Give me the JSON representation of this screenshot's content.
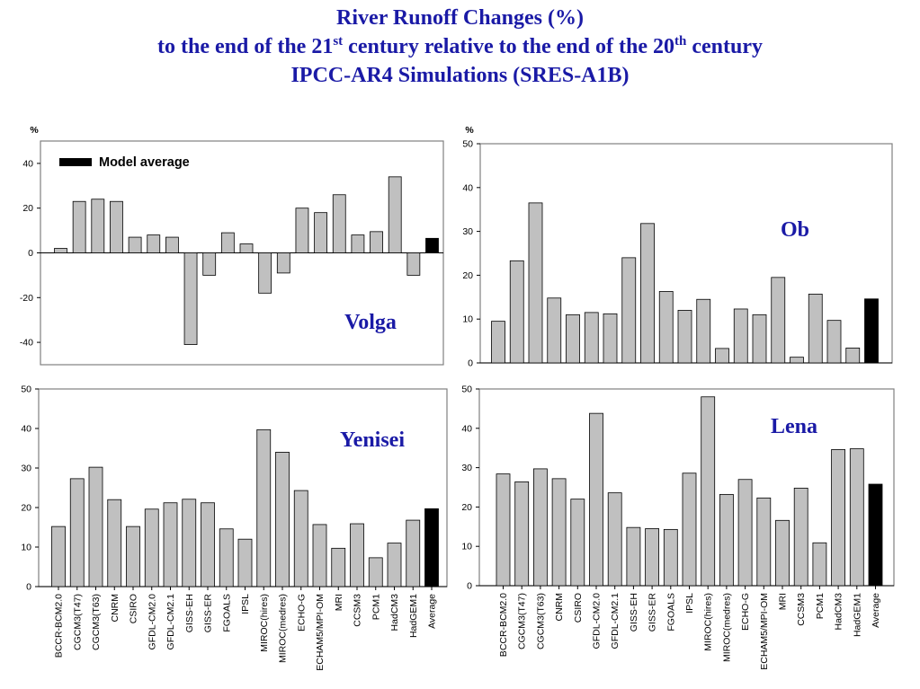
{
  "header": {
    "title_line1": "River Runoff Changes (%)",
    "title_line2_a": "to the end of the 21",
    "title_line2_sup1": "st",
    "title_line2_b": " century relative to the end of the 20",
    "title_line2_sup2": "th",
    "title_line2_c": " century",
    "title_line3": "IPCC-AR4 Simulations (SRES-A1B)"
  },
  "colors": {
    "title": "#1a1aa6",
    "bar": "#c0c0c0",
    "average_bar": "#000000",
    "outline": "#000000"
  },
  "chart_data": [
    {
      "type": "bar",
      "label": "Volga",
      "ylabel": "%",
      "ylim": [
        -50,
        50
      ],
      "yticks": [
        -40,
        -20,
        0,
        20,
        40
      ],
      "legend": {
        "label": "Model average",
        "position": "top-left"
      },
      "categories": [
        "BCCR-BCM2.0",
        "CGCM3(T47)",
        "CGCM3(T63)",
        "CNRM",
        "CSIRO",
        "GFDL-CM2.0",
        "GFDL-CM2.1",
        "GISS-EH",
        "GISS-ER",
        "FGOALS",
        "IPSL",
        "MIROC(hires)",
        "MIROC(medres)",
        "ECHO-G",
        "ECHAM5/MPI-OM",
        "MRI",
        "CCSM3",
        "PCM1",
        "HadCM3",
        "HadGEM1",
        "Average"
      ],
      "values": [
        2,
        23,
        24,
        23,
        7,
        8,
        7,
        -41,
        -10,
        9,
        4,
        -18,
        -9,
        20,
        18,
        26,
        8,
        9.5,
        34,
        -10,
        6.5
      ]
    },
    {
      "type": "bar",
      "label": "Ob",
      "ylabel": "%",
      "ylim": [
        0,
        50
      ],
      "yticks": [
        0,
        10,
        20,
        30,
        40,
        50
      ],
      "categories": [
        "BCCR-BCM2.0",
        "CGCM3(T47)",
        "CGCM3(T63)",
        "CNRM",
        "CSIRO",
        "GFDL-CM2.0",
        "GFDL-CM2.1",
        "GISS-EH",
        "GISS-ER",
        "FGOALS",
        "IPSL",
        "MIROC(hires)",
        "MIROC(medres)",
        "ECHO-G",
        "ECHAM5/MPI-OM",
        "MRI",
        "CCSM3",
        "PCM1",
        "HadCM3",
        "HadGEM1",
        "Average"
      ],
      "values": [
        9.5,
        23.3,
        36.5,
        14.8,
        11,
        11.5,
        11.2,
        24,
        31.8,
        16.3,
        12,
        14.5,
        3.3,
        12.3,
        11,
        19.5,
        1.3,
        15.7,
        9.7,
        3.4,
        14.6
      ]
    },
    {
      "type": "bar",
      "label": "Yenisei",
      "ylim": [
        0,
        50
      ],
      "yticks": [
        0,
        10,
        20,
        30,
        40,
        50
      ],
      "categories": [
        "BCCR-BCM2.0",
        "CGCM3(T47)",
        "CGCM3(T63)",
        "CNRM",
        "CSIRO",
        "GFDL-CM2.0",
        "GFDL-CM2.1",
        "GISS-EH",
        "GISS-ER",
        "FGOALS",
        "IPSL",
        "MIROC(hires)",
        "MIROC(medres)",
        "ECHO-G",
        "ECHAM5/MPI-OM",
        "MRI",
        "CCSM3",
        "PCM1",
        "HadCM3",
        "HadGEM1",
        "Average"
      ],
      "values": [
        15.2,
        27.3,
        30.2,
        22,
        15.2,
        19.6,
        21.2,
        22.1,
        21.2,
        14.6,
        12,
        39.7,
        34,
        24.3,
        15.7,
        9.7,
        15.9,
        7.3,
        11,
        16.8,
        19.7
      ]
    },
    {
      "type": "bar",
      "label": "Lena",
      "ylim": [
        0,
        50
      ],
      "yticks": [
        0,
        10,
        20,
        30,
        40,
        50
      ],
      "categories": [
        "BCCR-BCM2.0",
        "CGCM3(T47)",
        "CGCM3(T63)",
        "CNRM",
        "CSIRO",
        "GFDL-CM2.0",
        "GFDL-CM2.1",
        "GISS-EH",
        "GISS-ER",
        "FGOALS",
        "IPSL",
        "MIROC(hires)",
        "MIROC(medres)",
        "ECHO-G",
        "ECHAM5/MPI-OM",
        "MRI",
        "CCSM3",
        "PCM1",
        "HadCM3",
        "HadGEM1",
        "Average"
      ],
      "values": [
        28.4,
        26.4,
        29.7,
        27.2,
        22,
        43.8,
        23.6,
        14.8,
        14.5,
        14.3,
        28.6,
        48,
        23.2,
        27,
        22.3,
        16.6,
        24.8,
        10.9,
        34.6,
        34.8,
        25.8
      ]
    }
  ]
}
